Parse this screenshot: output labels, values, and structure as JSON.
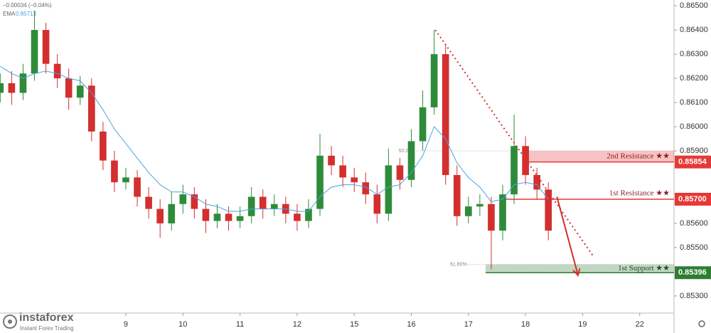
{
  "chart_data": {
    "type": "candlestick",
    "header": {
      "change": "−0.00034 (−0.04%)",
      "ema_label": "EMA",
      "ema_value": {
        "value": 0.85713,
        "label": "0.85713"
      }
    },
    "brand": {
      "name": "instaforex",
      "tagline": "Instant Forex Trading"
    },
    "xlim": [
      -2.204,
      9.601
    ],
    "ylim": [
      0.85229,
      0.86524
    ],
    "xticks": [
      {
        "value": 0,
        "label": "9"
      },
      {
        "value": 1,
        "label": "10"
      },
      {
        "value": 2,
        "label": "11"
      },
      {
        "value": 3,
        "label": "12"
      },
      {
        "value": 4,
        "label": "15"
      },
      {
        "value": 5,
        "label": "16"
      },
      {
        "value": 6,
        "label": "17"
      },
      {
        "value": 7,
        "label": "18"
      },
      {
        "value": 8,
        "label": "19"
      },
      {
        "value": 9,
        "label": "22"
      }
    ],
    "yticks": [
      {
        "value": 0.865,
        "label": "0.86500"
      },
      {
        "value": 0.864,
        "label": "0.86400"
      },
      {
        "value": 0.863,
        "label": "0.86300"
      },
      {
        "value": 0.862,
        "label": "0.86200"
      },
      {
        "value": 0.861,
        "label": "0.86100"
      },
      {
        "value": 0.86,
        "label": "0.86000"
      },
      {
        "value": 0.859,
        "label": "0.85900"
      },
      {
        "value": 0.856,
        "label": "0.85600"
      },
      {
        "value": 0.855,
        "label": "0.85500"
      },
      {
        "value": 0.853,
        "label": "0.85300"
      }
    ],
    "up_color": "#2e8b3a",
    "down_color": "#d32f2f",
    "x": [
      -2.2,
      -2.0,
      -1.8,
      -1.6,
      -1.4,
      -1.2,
      -1.0,
      -0.8,
      -0.6,
      -0.4,
      -0.2,
      0,
      0.2,
      0.4,
      0.6,
      0.8,
      1.0,
      1.2,
      1.4,
      1.6,
      1.8,
      2.0,
      2.2,
      2.4,
      2.6,
      2.8,
      3.0,
      3.2,
      3.4,
      3.6,
      3.8,
      4.0,
      4.2,
      4.4,
      4.6,
      4.8,
      5.0,
      5.2,
      5.4,
      5.6,
      5.8,
      6.0,
      6.2,
      6.4,
      6.6,
      6.8,
      7.0,
      7.2,
      7.4
    ],
    "open": [
      0.8614,
      0.8618,
      0.8614,
      0.8622,
      0.864,
      0.8626,
      0.862,
      0.8612,
      0.8617,
      0.8598,
      0.8586,
      0.8577,
      0.8579,
      0.8571,
      0.8566,
      0.856,
      0.8568,
      0.8572,
      0.8566,
      0.8561,
      0.8564,
      0.8561,
      0.8563,
      0.8571,
      0.8566,
      0.8568,
      0.8564,
      0.8561,
      0.8566,
      0.8588,
      0.8584,
      0.8579,
      0.8577,
      0.8572,
      0.8564,
      0.8584,
      0.8578,
      0.8594,
      0.8608,
      0.863,
      0.858,
      0.8563,
      0.8567,
      0.8568,
      0.8557,
      0.8572,
      0.8592,
      0.858,
      0.8574
    ],
    "high": [
      0.8622,
      0.8623,
      0.8626,
      0.8648,
      0.8643,
      0.863,
      0.8624,
      0.8621,
      0.862,
      0.8602,
      0.859,
      0.8583,
      0.8582,
      0.8575,
      0.857,
      0.8573,
      0.8576,
      0.8575,
      0.857,
      0.8568,
      0.8567,
      0.8567,
      0.8575,
      0.8574,
      0.8572,
      0.8571,
      0.8568,
      0.857,
      0.8597,
      0.8592,
      0.8588,
      0.8583,
      0.8581,
      0.8576,
      0.8591,
      0.8587,
      0.8599,
      0.8615,
      0.864,
      0.8634,
      0.8584,
      0.8571,
      0.8572,
      0.8571,
      0.8576,
      0.8605,
      0.8596,
      0.8583,
      0.8577
    ],
    "low": [
      0.861,
      0.8609,
      0.8611,
      0.8619,
      0.8622,
      0.8616,
      0.8607,
      0.8609,
      0.8594,
      0.8582,
      0.8573,
      0.8574,
      0.8567,
      0.8562,
      0.8554,
      0.8557,
      0.8564,
      0.8562,
      0.8556,
      0.8558,
      0.8557,
      0.8558,
      0.856,
      0.8562,
      0.8563,
      0.856,
      0.8557,
      0.8558,
      0.8563,
      0.858,
      0.8575,
      0.8573,
      0.8568,
      0.856,
      0.8561,
      0.8574,
      0.8575,
      0.859,
      0.8605,
      0.8576,
      0.8559,
      0.856,
      0.8563,
      0.8541,
      0.8553,
      0.8568,
      0.8576,
      0.857,
      0.8553
    ],
    "close": [
      0.8618,
      0.8614,
      0.8622,
      0.864,
      0.8626,
      0.862,
      0.8612,
      0.8617,
      0.8598,
      0.8586,
      0.8577,
      0.8579,
      0.8571,
      0.8566,
      0.856,
      0.8568,
      0.8572,
      0.8566,
      0.8561,
      0.8564,
      0.8561,
      0.8563,
      0.8571,
      0.8566,
      0.8568,
      0.8564,
      0.8561,
      0.8566,
      0.8588,
      0.8584,
      0.8579,
      0.8577,
      0.8572,
      0.8564,
      0.8584,
      0.8578,
      0.8594,
      0.8608,
      0.863,
      0.858,
      0.8563,
      0.8567,
      0.8568,
      0.8557,
      0.8572,
      0.8592,
      0.858,
      0.8574,
      0.8557
    ],
    "ema": {
      "color": "#4aa3df",
      "values": [
        0.8625,
        0.8622,
        0.862,
        0.8622,
        0.8623,
        0.8622,
        0.862,
        0.8619,
        0.8614,
        0.8607,
        0.8599,
        0.8593,
        0.8587,
        0.8581,
        0.8576,
        0.8573,
        0.8573,
        0.8571,
        0.8568,
        0.8567,
        0.8565,
        0.8565,
        0.8566,
        0.8566,
        0.8566,
        0.8566,
        0.8565,
        0.8565,
        0.8571,
        0.8575,
        0.8576,
        0.8576,
        0.8575,
        0.8572,
        0.8575,
        0.8576,
        0.8581,
        0.8588,
        0.86,
        0.8595,
        0.8585,
        0.8579,
        0.8575,
        0.8569,
        0.857,
        0.8576,
        0.8577,
        0.8576,
        0.857
      ]
    },
    "levels": [
      {
        "label": "2nd Resistance ★★",
        "tag": {
          "value": 0.85854,
          "label": "0.85854"
        },
        "top": 0.859,
        "x_start": 7.0,
        "color": "#e53935"
      },
      {
        "label": "1st Resistance ★★",
        "tag": {
          "value": 0.857,
          "label": "0.85700"
        },
        "x_start": 6.6,
        "color": "#e53935"
      },
      {
        "label": "1st Support ★★",
        "tag": {
          "value": 0.85396,
          "label": "0.85396"
        },
        "top": 0.8543,
        "x_start": 6.3,
        "color": "#2e7d32"
      }
    ],
    "fib": [
      {
        "label": "50.0%",
        "x": 5.05,
        "y": 0.859
      },
      {
        "label": "61.80%",
        "x": 6.0,
        "y": 0.8543
      }
    ],
    "trendline": {
      "x": [
        5.42,
        8.2
      ],
      "y": [
        0.864,
        0.8546
      ],
      "color": "#d32f2f"
    },
    "arrow": {
      "x": [
        7.55,
        7.92
      ],
      "y": [
        0.8571,
        0.85385
      ],
      "color": "#d32f2f"
    }
  }
}
